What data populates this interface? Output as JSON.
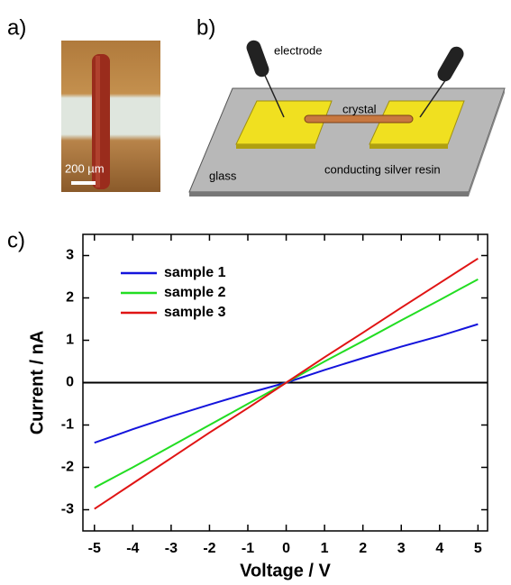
{
  "panel_labels": [
    "a)",
    "b)",
    "c)"
  ],
  "photo": {
    "scale_label": "200 µm"
  },
  "diagram": {
    "labels": [
      "electrode",
      "crystal",
      "glass",
      "conducting silver resin"
    ]
  },
  "chart_data": {
    "type": "line",
    "x_label": "Voltage / V",
    "y_label": "Current / nA",
    "x": [
      -5,
      -4,
      -3,
      -2,
      -1,
      0,
      1,
      2,
      3,
      4,
      5
    ],
    "series": [
      {
        "name": "sample 1",
        "color": "#1414dc",
        "values": [
          -1.42,
          -1.1,
          -0.8,
          -0.52,
          -0.25,
          0,
          0.3,
          0.58,
          0.85,
          1.1,
          1.38
        ]
      },
      {
        "name": "sample 2",
        "color": "#22dd22",
        "values": [
          -2.48,
          -2.0,
          -1.5,
          -1.0,
          -0.5,
          0,
          0.5,
          0.98,
          1.47,
          1.95,
          2.44
        ]
      },
      {
        "name": "sample 3",
        "color": "#e01414",
        "values": [
          -2.98,
          -2.38,
          -1.78,
          -1.18,
          -0.6,
          0,
          0.6,
          1.18,
          1.77,
          2.35,
          2.93
        ]
      }
    ],
    "xlim": [
      -5.3,
      5.25
    ],
    "ylim": [
      -3.5,
      3.5
    ],
    "xticks": [
      -5,
      -4,
      -3,
      -2,
      -1,
      0,
      1,
      2,
      3,
      4,
      5
    ],
    "yticks": [
      -3,
      -2,
      -1,
      0,
      1,
      2,
      3
    ],
    "hlines": [
      0
    ],
    "legend": "upper-left"
  }
}
